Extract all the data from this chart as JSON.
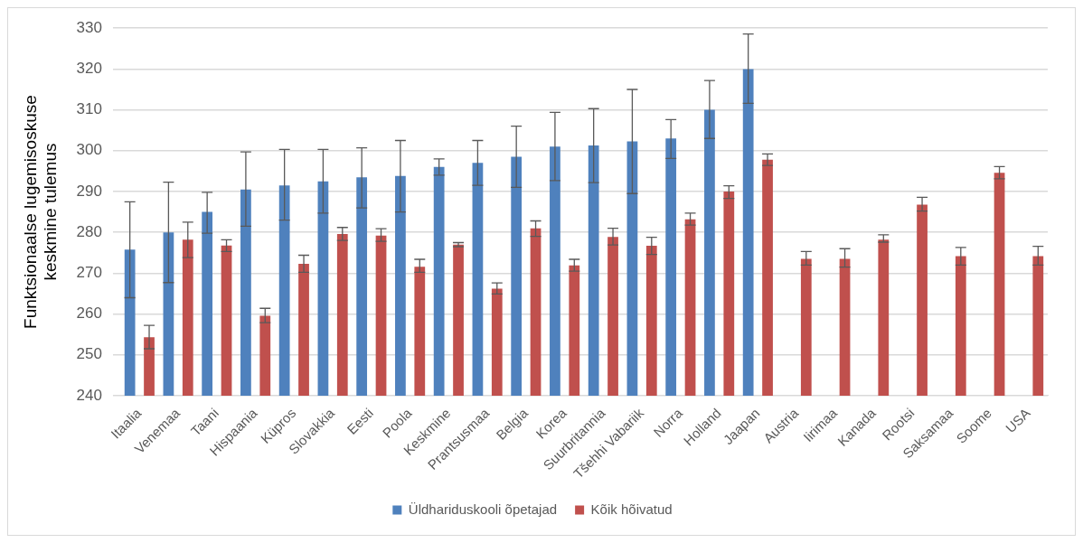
{
  "chart_data": {
    "type": "bar",
    "ylabel": "Funktsionaalse lugemisoskuse keskmine tulemus",
    "categories": [
      "Itaalia",
      "Venemaa",
      "Taani",
      "Hispaania",
      "Küpros",
      "Slovakkia",
      "Eesti",
      "Poola",
      "Keskmine",
      "Prantsusmaa",
      "Belgia",
      "Korea",
      "Suurbritannia",
      "Tšehhi Vabariik",
      "Norra",
      "Holland",
      "Jaapan",
      "Austria",
      "Iirimaa",
      "Kanada",
      "Rootsi",
      "Saksamaa",
      "Soome",
      "USA"
    ],
    "series": [
      {
        "name": "Üldhariduskooli õpetajad",
        "color": "#4f81bd",
        "values": [
          275.8,
          280,
          285,
          290.5,
          291.5,
          292.5,
          293.5,
          293.8,
          296,
          297,
          298.5,
          301,
          301.3,
          302.3,
          303,
          310,
          320,
          null,
          null,
          null,
          null,
          null,
          null,
          null
        ],
        "errors": [
          [
            264,
            287.5
          ],
          [
            267.7,
            292.3
          ],
          [
            279.8,
            289.8
          ],
          [
            281.5,
            299.7
          ],
          [
            283,
            300.3
          ],
          [
            284.7,
            300.3
          ],
          [
            286,
            300.7
          ],
          [
            285,
            302.5
          ],
          [
            294,
            298
          ],
          [
            291.5,
            302.5
          ],
          [
            291,
            306
          ],
          [
            292.7,
            309.4
          ],
          [
            292.2,
            310.3
          ],
          [
            289.5,
            315
          ],
          [
            298.1,
            307.6
          ],
          [
            303,
            317.2
          ],
          [
            311.6,
            328.6
          ],
          null,
          null,
          null,
          null,
          null,
          null,
          null
        ]
      },
      {
        "name": "Kõik hõivatud",
        "color": "#c0504d",
        "values": [
          254.3,
          278.2,
          276.8,
          259.6,
          272.3,
          279.6,
          279.2,
          271.6,
          277,
          266.2,
          281,
          271.9,
          278.9,
          276.7,
          283.2,
          290,
          297.8,
          273.5,
          273.5,
          278.2,
          286.8,
          274.2,
          294.6,
          274.2
        ],
        "errors": [
          [
            251.5,
            257.2
          ],
          [
            273.8,
            282.5
          ],
          [
            275.3,
            278.2
          ],
          [
            257.9,
            261.4
          ],
          [
            270.2,
            274.4
          ],
          [
            278,
            281.2
          ],
          [
            277.8,
            280.9
          ],
          [
            270.2,
            273.4
          ],
          [
            276.5,
            277.5
          ],
          [
            264.9,
            267.6
          ],
          [
            279,
            282.8
          ],
          [
            270.5,
            273.4
          ],
          [
            276.9,
            281
          ],
          [
            274.6,
            278.8
          ],
          [
            281.8,
            284.7
          ],
          [
            288.3,
            291.4
          ],
          [
            296.4,
            299.2
          ],
          [
            272,
            275.3
          ],
          [
            271.5,
            276
          ],
          [
            277.6,
            279.4
          ],
          [
            285.2,
            288.6
          ],
          [
            272,
            276.3
          ],
          [
            293.1,
            296.1
          ],
          [
            272,
            276.6
          ]
        ]
      }
    ],
    "ylim": [
      240,
      330
    ],
    "yticks": [
      240,
      250,
      260,
      270,
      280,
      290,
      300,
      310,
      320,
      330
    ],
    "grid": "y",
    "legend": "bottom"
  }
}
